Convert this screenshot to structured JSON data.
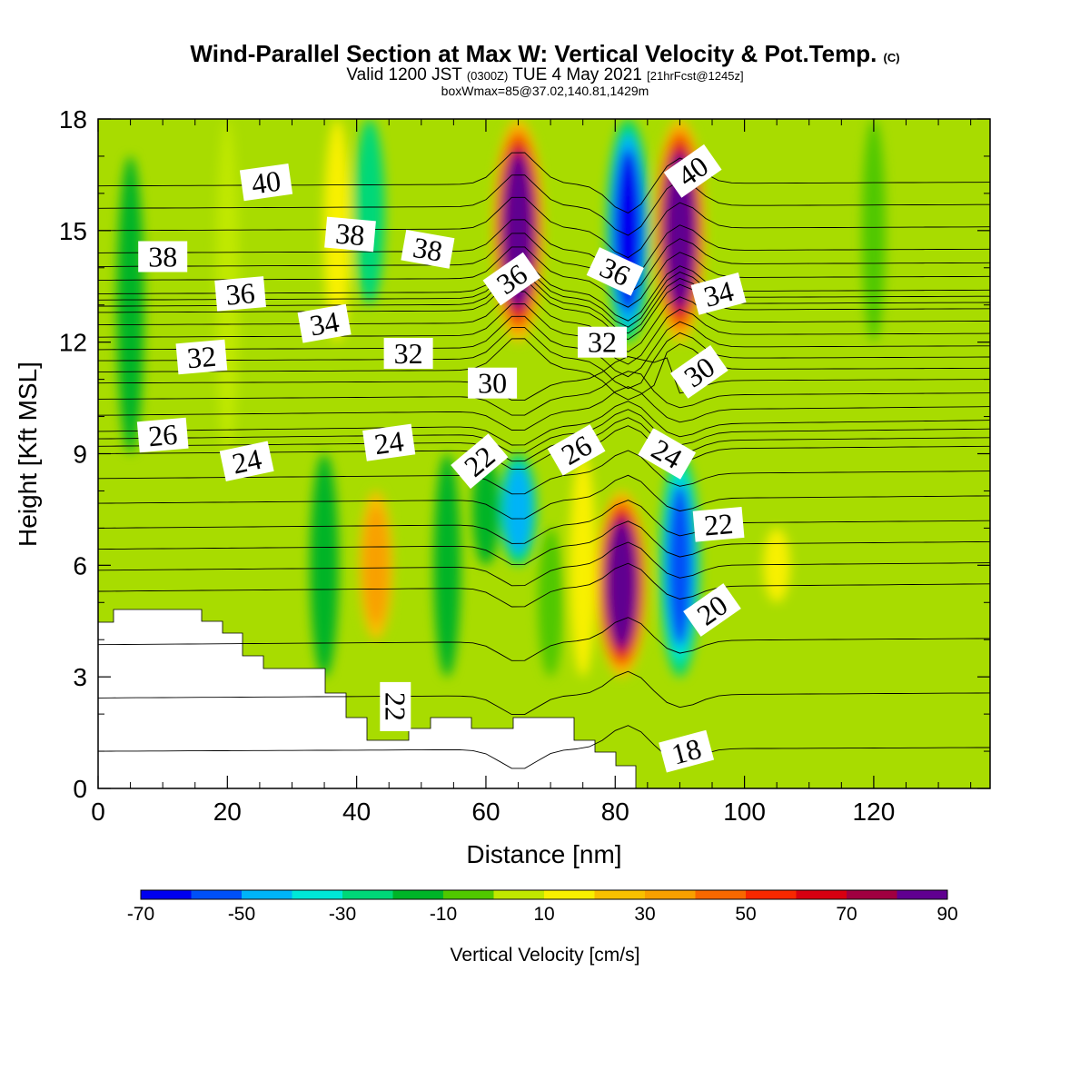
{
  "header": {
    "title": "Wind-Parallel Section at Max W: Vertical Velocity & Pot.Temp.",
    "copyright_mark": "(C)",
    "valid_prefix": "Valid 1200 JST",
    "valid_utc": "(0300Z)",
    "valid_date": "TUE 4 May 2021",
    "forecast_tag": "[21hrFcst@1245z]",
    "box_info": "boxWmax=85@37.02,140.81,1429m"
  },
  "chart_data": {
    "type": "heatmap",
    "title": "Wind-Parallel Section at Max W: Vertical Velocity & Pot.Temp.",
    "xlabel": "Distance [nm]",
    "ylabel": "Height [Kft MSL]",
    "xlim": [
      0,
      138
    ],
    "ylim": [
      0,
      18
    ],
    "x_ticks": [
      0,
      20,
      40,
      60,
      80,
      100,
      120
    ],
    "y_ticks": [
      0,
      3,
      6,
      9,
      12,
      15,
      18
    ],
    "colorbar": {
      "label": "Vertical Velocity [cm/s]",
      "tick_labels": [
        "-70",
        "-50",
        "-30",
        "-10",
        "10",
        "30",
        "50",
        "70",
        "90"
      ],
      "bins": [
        -70,
        -60,
        -50,
        -40,
        -30,
        -20,
        -10,
        0,
        10,
        20,
        30,
        40,
        50,
        60,
        70,
        80,
        90
      ],
      "colors": [
        "#0000f0",
        "#0050f8",
        "#00b4f8",
        "#00e8d8",
        "#00d878",
        "#00b428",
        "#50c800",
        "#c0e800",
        "#f8f000",
        "#f8c000",
        "#f8a000",
        "#f86800",
        "#f82800",
        "#d80010",
        "#a00040",
        "#600090"
      ]
    },
    "velocity_columns": [
      {
        "x": 5,
        "value": -15,
        "y_range": [
          9,
          17
        ]
      },
      {
        "x": 20,
        "value": 5,
        "y_range": [
          9,
          18
        ]
      },
      {
        "x": 37,
        "value": 15,
        "y_range": [
          12,
          18
        ]
      },
      {
        "x": 42,
        "value": -25,
        "y_range": [
          13,
          18
        ]
      },
      {
        "x": 35,
        "value": -20,
        "y_range": [
          3,
          9
        ]
      },
      {
        "x": 43,
        "value": 35,
        "y_range": [
          4,
          8
        ]
      },
      {
        "x": 54,
        "value": -15,
        "y_range": [
          3,
          9
        ]
      },
      {
        "x": 60,
        "value": -15,
        "y_range": [
          6,
          9
        ]
      },
      {
        "x": 65,
        "value": 85,
        "y_range": [
          12,
          18
        ]
      },
      {
        "x": 65,
        "value": -45,
        "y_range": [
          6,
          9
        ]
      },
      {
        "x": 70,
        "value": -10,
        "y_range": [
          3,
          7
        ]
      },
      {
        "x": 75,
        "value": 15,
        "y_range": [
          3,
          9
        ]
      },
      {
        "x": 82,
        "value": -65,
        "y_range": [
          12,
          18
        ]
      },
      {
        "x": 81,
        "value": 85,
        "y_range": [
          3,
          8
        ]
      },
      {
        "x": 90,
        "value": 85,
        "y_range": [
          12,
          18
        ]
      },
      {
        "x": 90,
        "value": -55,
        "y_range": [
          3,
          9
        ]
      },
      {
        "x": 105,
        "value": 15,
        "y_range": [
          5,
          7
        ]
      },
      {
        "x": 120,
        "value": -5,
        "y_range": [
          12,
          18
        ]
      }
    ],
    "theta_contours": [
      {
        "label": "40",
        "y_left": 16.2,
        "y_right": 16.3
      },
      {
        "label": "38",
        "y_left": 14.4,
        "y_right": 14.5
      },
      {
        "label": "36",
        "y_left": 13.3,
        "y_right": 13.4
      },
      {
        "label": "34",
        "y_left": 12.8,
        "y_right": 12.9
      },
      {
        "label": "32",
        "y_left": 11.8,
        "y_right": 11.9
      },
      {
        "label": "30",
        "y_left": 10.9,
        "y_right": 11.0
      },
      {
        "label": "26",
        "y_left": 9.6,
        "y_right": 9.9
      },
      {
        "label": "24",
        "y_left": 9.0,
        "y_right": 9.2
      },
      {
        "label": "22",
        "y_left": 7.0,
        "y_right": 7.2
      },
      {
        "label": "20",
        "y_left": 5.3,
        "y_right": 5.5
      },
      {
        "label": "18",
        "y_left": 1.0,
        "y_right": 1.1
      }
    ],
    "contour_labels": [
      {
        "text": "40",
        "x": 26,
        "y": 16.3,
        "angle": -8
      },
      {
        "text": "38",
        "x": 10,
        "y": 14.3,
        "angle": 0
      },
      {
        "text": "38",
        "x": 39,
        "y": 14.9,
        "angle": 5
      },
      {
        "text": "38",
        "x": 51,
        "y": 14.5,
        "angle": 10
      },
      {
        "text": "36",
        "x": 22,
        "y": 13.3,
        "angle": -5
      },
      {
        "text": "36",
        "x": 64,
        "y": 13.7,
        "angle": -35
      },
      {
        "text": "36",
        "x": 80,
        "y": 13.9,
        "angle": 25
      },
      {
        "text": "40",
        "x": 92,
        "y": 16.6,
        "angle": -35
      },
      {
        "text": "34",
        "x": 35,
        "y": 12.5,
        "angle": -10
      },
      {
        "text": "34",
        "x": 96,
        "y": 13.3,
        "angle": -15
      },
      {
        "text": "32",
        "x": 16,
        "y": 11.6,
        "angle": -5
      },
      {
        "text": "32",
        "x": 48,
        "y": 11.7,
        "angle": 0
      },
      {
        "text": "32",
        "x": 78,
        "y": 12.0,
        "angle": 0
      },
      {
        "text": "30",
        "x": 61,
        "y": 10.9,
        "angle": 0
      },
      {
        "text": "30",
        "x": 93,
        "y": 11.2,
        "angle": -35
      },
      {
        "text": "26",
        "x": 10,
        "y": 9.5,
        "angle": -5
      },
      {
        "text": "26",
        "x": 74,
        "y": 9.1,
        "angle": -30
      },
      {
        "text": "24",
        "x": 23,
        "y": 8.8,
        "angle": -12
      },
      {
        "text": "24",
        "x": 45,
        "y": 9.3,
        "angle": -8
      },
      {
        "text": "24",
        "x": 88,
        "y": 9.0,
        "angle": 30
      },
      {
        "text": "22",
        "x": 59,
        "y": 8.8,
        "angle": -40
      },
      {
        "text": "22",
        "x": 96,
        "y": 7.1,
        "angle": -5
      },
      {
        "text": "22",
        "x": 46,
        "y": 2.2,
        "angle": 90
      },
      {
        "text": "20",
        "x": 95,
        "y": 4.8,
        "angle": -35
      },
      {
        "text": "18",
        "x": 91,
        "y": 1.0,
        "angle": -15
      }
    ]
  }
}
